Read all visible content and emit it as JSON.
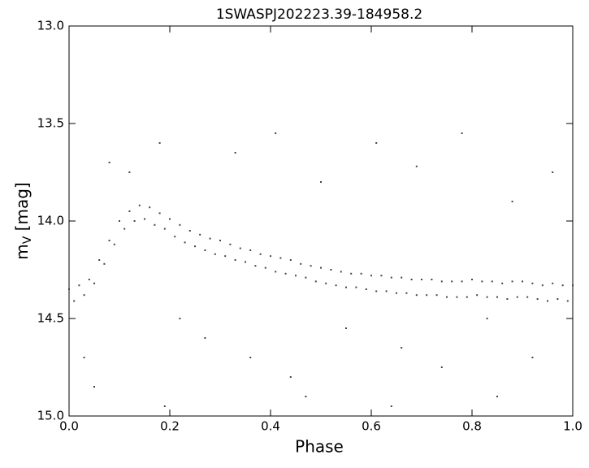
{
  "chart_data": {
    "type": "scatter",
    "title": "1SWASPJ202223.39-184958.2",
    "xlabel": "Phase",
    "ylabel": {
      "main": "m",
      "sub": "V",
      "unit": "[mag]"
    },
    "xlim": [
      0,
      1
    ],
    "ylim": [
      13,
      15
    ],
    "y_inverted": true,
    "xticks": [
      {
        "value": 0,
        "label": "0.0"
      },
      0.2,
      0.4,
      0.6,
      0.8,
      {
        "value": 1,
        "label": "1.0"
      }
    ],
    "yticks": [
      {
        "value": 13,
        "label": "13.0"
      },
      13.5,
      {
        "value": 14,
        "label": "14.0"
      },
      14.5,
      {
        "value": 15,
        "label": "15.0"
      }
    ],
    "grid": false,
    "series": [
      {
        "color": "#444444",
        "x": [
          0.0,
          0.02,
          0.04,
          0.06,
          0.08,
          0.1,
          0.12,
          0.14,
          0.16,
          0.18,
          0.2,
          0.22,
          0.24,
          0.26,
          0.28,
          0.3,
          0.32,
          0.34,
          0.36,
          0.38,
          0.4,
          0.42,
          0.44,
          0.46,
          0.48,
          0.5,
          0.52,
          0.54,
          0.56,
          0.58,
          0.6,
          0.62,
          0.64,
          0.66,
          0.68,
          0.7,
          0.72,
          0.74,
          0.76,
          0.78,
          0.8,
          0.82,
          0.84,
          0.86,
          0.88,
          0.9,
          0.92,
          0.94,
          0.96,
          0.98,
          1.0,
          0.01,
          0.03,
          0.05,
          0.07,
          0.09,
          0.11,
          0.13,
          0.15,
          0.17,
          0.19,
          0.21,
          0.23,
          0.25,
          0.27,
          0.29,
          0.31,
          0.33,
          0.35,
          0.37,
          0.39,
          0.41,
          0.43,
          0.45,
          0.47,
          0.49,
          0.51,
          0.53,
          0.55,
          0.57,
          0.59,
          0.61,
          0.63,
          0.65,
          0.67,
          0.69,
          0.71,
          0.73,
          0.75,
          0.77,
          0.79,
          0.81,
          0.83,
          0.85,
          0.87,
          0.89,
          0.91,
          0.93,
          0.95,
          0.97,
          0.99,
          0.03,
          0.08,
          0.12,
          0.18,
          0.22,
          0.27,
          0.33,
          0.36,
          0.41,
          0.44,
          0.5,
          0.55,
          0.61,
          0.66,
          0.69,
          0.74,
          0.78,
          0.83,
          0.88,
          0.92,
          0.96,
          0.05,
          0.19,
          0.47,
          0.64,
          0.85
        ],
        "values": [
          14.35,
          14.33,
          14.3,
          14.2,
          14.1,
          14.0,
          13.95,
          13.92,
          13.93,
          13.96,
          13.99,
          14.02,
          14.05,
          14.07,
          14.09,
          14.1,
          14.12,
          14.14,
          14.15,
          14.17,
          14.18,
          14.19,
          14.2,
          14.22,
          14.23,
          14.24,
          14.25,
          14.26,
          14.27,
          14.27,
          14.28,
          14.28,
          14.29,
          14.29,
          14.3,
          14.3,
          14.3,
          14.31,
          14.31,
          14.31,
          14.3,
          14.31,
          14.31,
          14.32,
          14.31,
          14.31,
          14.32,
          14.33,
          14.32,
          14.33,
          14.33,
          14.41,
          14.38,
          14.32,
          14.22,
          14.12,
          14.04,
          14.0,
          13.99,
          14.02,
          14.04,
          14.08,
          14.11,
          14.13,
          14.15,
          14.17,
          14.18,
          14.2,
          14.21,
          14.23,
          14.24,
          14.26,
          14.27,
          14.28,
          14.29,
          14.31,
          14.32,
          14.33,
          14.34,
          14.34,
          14.35,
          14.36,
          14.36,
          14.37,
          14.37,
          14.38,
          14.38,
          14.38,
          14.39,
          14.39,
          14.39,
          14.38,
          14.39,
          14.39,
          14.4,
          14.39,
          14.39,
          14.4,
          14.41,
          14.4,
          14.41,
          14.7,
          13.7,
          13.75,
          13.6,
          14.5,
          14.6,
          13.65,
          14.7,
          13.55,
          14.8,
          13.8,
          14.55,
          13.6,
          14.65,
          13.72,
          14.75,
          13.55,
          14.5,
          13.9,
          14.7,
          13.75,
          14.85,
          14.95,
          14.9,
          14.95,
          14.9
        ]
      }
    ]
  }
}
